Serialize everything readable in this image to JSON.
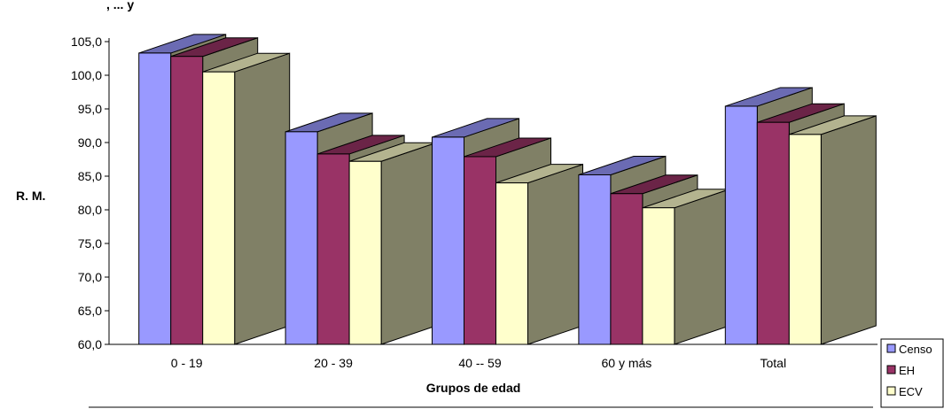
{
  "chart_data": {
    "type": "bar",
    "style": "3d-clustered",
    "title_fragment": ", ... y",
    "xlabel": "Grupos de edad",
    "ylabel": "R. M.",
    "ylim": [
      60,
      105
    ],
    "ytick_step": 5,
    "ytick_format": "comma-1-decimal",
    "categories": [
      "0 - 19",
      "20 - 39",
      "40 -- 59",
      "60 y más",
      "Total"
    ],
    "series": [
      {
        "name": "Censo",
        "color": "#9999ff",
        "values": [
          103.3,
          91.6,
          90.8,
          85.2,
          95.4
        ]
      },
      {
        "name": "EH",
        "color": "#993366",
        "values": [
          102.8,
          88.3,
          87.9,
          82.4,
          93.0
        ]
      },
      {
        "name": "ECV",
        "color": "#ffffcc",
        "values": [
          100.5,
          87.2,
          84.0,
          80.3,
          91.2
        ]
      }
    ],
    "side_color": "#808066",
    "legend_position": "bottom-right",
    "grid": false
  }
}
